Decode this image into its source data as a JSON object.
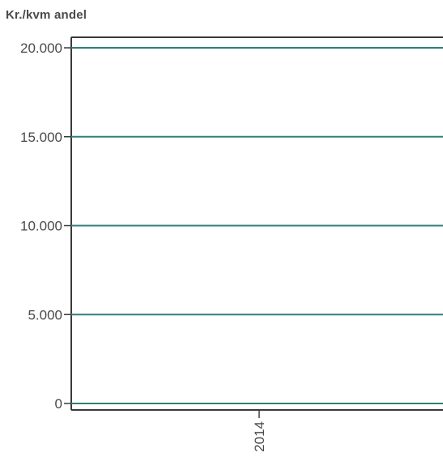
{
  "chart_data": {
    "type": "line",
    "title": "",
    "xlabel": "",
    "ylabel": "Kr./kvm andel",
    "y_ticks": [
      "20.000",
      "15.000",
      "10.000",
      "5.000",
      "0"
    ],
    "y_tick_values": [
      20000,
      15000,
      10000,
      5000,
      0
    ],
    "ylim": [
      0,
      20000
    ],
    "x_ticks": [
      "2014"
    ],
    "grid": true,
    "colors": {
      "gridline": "#2f7f7a",
      "axis": "#3a3a3a",
      "text": "#4a4a4a"
    },
    "series": []
  }
}
